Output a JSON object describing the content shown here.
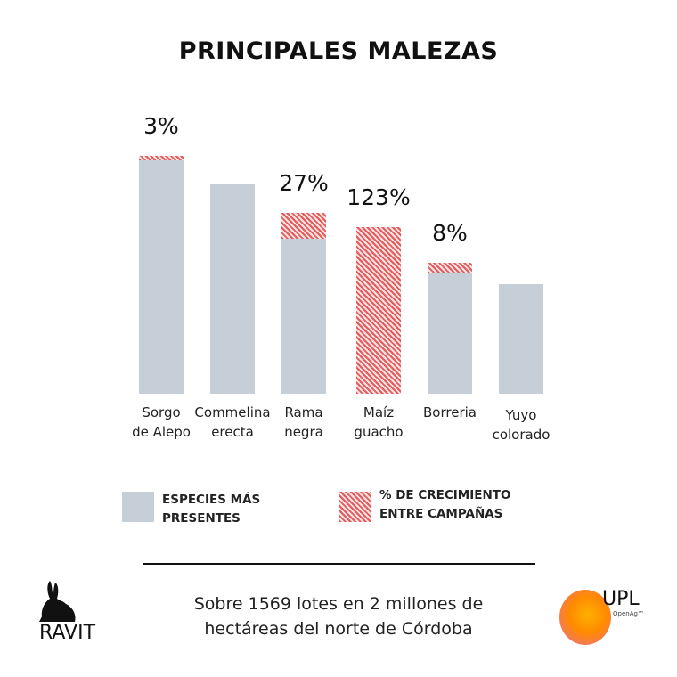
{
  "title": "PRINCIPALES MALEZAS",
  "chart_data": {
    "type": "bar",
    "title": "PRINCIPALES MALEZAS",
    "categories": [
      "Sorgo de Alepo",
      "Commelina erecta",
      "Rama negra",
      "Maíz guacho",
      "Borreria",
      "Yuyo colorado"
    ],
    "category_lines": [
      [
        "Sorgo",
        "de Alepo"
      ],
      [
        "Commelina",
        "erecta"
      ],
      [
        "Rama",
        "negra"
      ],
      [
        "Maíz",
        "guacho"
      ],
      [
        "Borreria",
        ""
      ],
      [
        "Yuyo",
        "colorado"
      ]
    ],
    "series": [
      {
        "name": "ESPECIES MÁS PRESENTES",
        "values": [
          98,
          88,
          65,
          0,
          51,
          46
        ],
        "color": "#c6ced7"
      },
      {
        "name": "% DE CRECIMIENTO ENTRE CAMPAÑAS",
        "values": [
          2,
          0,
          11,
          70,
          4,
          0
        ],
        "color": "#e35b5b"
      }
    ],
    "growth_labels": [
      "3%",
      "",
      "27%",
      "123%",
      "8%",
      ""
    ],
    "ylim": [
      0,
      100
    ],
    "grid": false,
    "legend_position": "bottom"
  },
  "legend": {
    "gray_lines": [
      "ESPECIES MÁS",
      "PRESENTES"
    ],
    "hatch_lines": [
      "% DE CRECIMIENTO",
      "ENTRE CAMPAÑAS"
    ]
  },
  "footer": {
    "line1": "Sobre 1569 lotes en 2 millones de",
    "line2": "hectáreas del norte de Córdoba"
  },
  "logos": {
    "left": "RAVIT",
    "right": "UPL",
    "right_sub": "OpenAg™"
  }
}
